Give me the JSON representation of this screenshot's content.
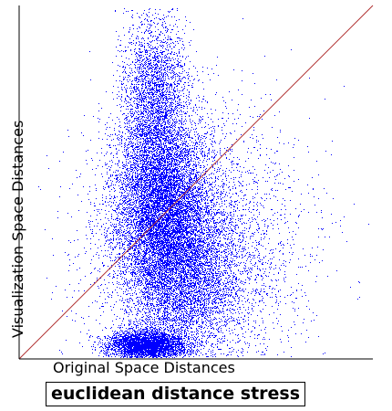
{
  "chart_data": {
    "type": "scatter",
    "title": "euclidean distance stress",
    "xlabel": "Original Space Distances",
    "ylabel": "Visualization Space Distances",
    "xlim": [
      0,
      1
    ],
    "ylim": [
      0,
      1
    ],
    "grid": false,
    "reference_line": {
      "points": [
        [
          0,
          0
        ],
        [
          1,
          1
        ]
      ],
      "color": "#b03030"
    },
    "point_color": "#0000ff",
    "series": [
      {
        "point_count": 24000,
        "clusters": [
          {
            "cx": 0.4,
            "cy": 0.44,
            "sx": 0.065,
            "sy": 0.13,
            "weight": 0.33
          },
          {
            "cx": 0.46,
            "cy": 0.26,
            "sx": 0.075,
            "sy": 0.12,
            "weight": 0.2
          },
          {
            "cx": 0.36,
            "cy": 0.04,
            "sx": 0.055,
            "sy": 0.022,
            "weight": 0.17
          },
          {
            "cx": 0.38,
            "cy": 0.74,
            "sx": 0.045,
            "sy": 0.12,
            "weight": 0.12
          },
          {
            "cx": 0.5,
            "cy": 0.3,
            "sx": 0.15,
            "sy": 0.2,
            "weight": 0.18
          }
        ]
      }
    ]
  }
}
